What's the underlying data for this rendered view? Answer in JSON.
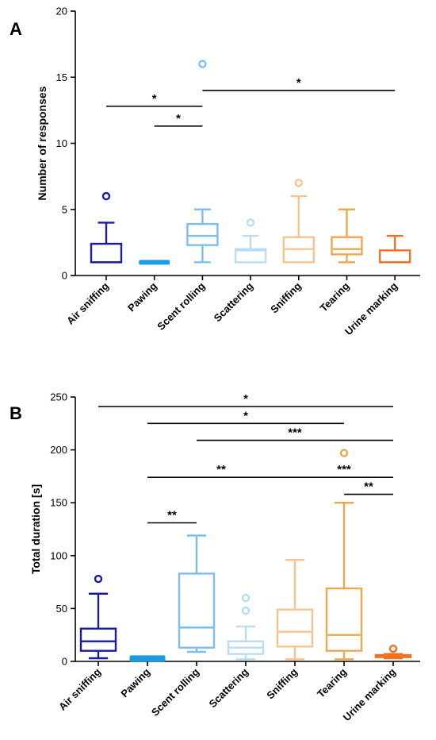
{
  "chart_data": [
    {
      "panel": "A",
      "type": "box",
      "ylabel": "Number of responses",
      "ylim": [
        0,
        20
      ],
      "yticks": [
        0,
        5,
        10,
        15,
        20
      ],
      "categories": [
        "Air sniffing",
        "Pawing",
        "Scent rolling",
        "Scattering",
        "Sniffing",
        "Tearing",
        "Urine marking"
      ],
      "colors": [
        "#1a1aa6",
        "#1a9be6",
        "#7cbfee",
        "#b9dcf5",
        "#f7c48c",
        "#f0a84e",
        "#ee7222"
      ],
      "boxes": [
        {
          "min": 1,
          "q1": 1,
          "median": 1,
          "q3": 2.4,
          "max": 4,
          "outliers": [
            6
          ]
        },
        {
          "min": 1,
          "q1": 1,
          "median": 1,
          "q3": 1,
          "max": 1,
          "outliers": []
        },
        {
          "min": 1,
          "q1": 2.3,
          "median": 3,
          "q3": 3.9,
          "max": 5,
          "outliers": [
            16
          ]
        },
        {
          "min": 1,
          "q1": 1,
          "median": 1.9,
          "q3": 2,
          "max": 3,
          "outliers": [
            4
          ]
        },
        {
          "min": 1,
          "q1": 1,
          "median": 2,
          "q3": 2.9,
          "max": 6,
          "outliers": [
            7
          ]
        },
        {
          "min": 1,
          "q1": 1.6,
          "median": 2,
          "q3": 2.9,
          "max": 5,
          "outliers": []
        },
        {
          "min": 1,
          "q1": 1,
          "median": 1,
          "q3": 1.9,
          "max": 3,
          "outliers": []
        }
      ],
      "significance": [
        {
          "from": 0,
          "to": 2,
          "y": 12.8,
          "label": "*"
        },
        {
          "from": 1,
          "to": 2,
          "y": 11.3,
          "label": "*"
        },
        {
          "from": 2,
          "to": 6,
          "y": 14.0,
          "label": "*"
        }
      ]
    },
    {
      "panel": "B",
      "type": "box",
      "ylabel": "Total duration [s]",
      "ylim": [
        0,
        250
      ],
      "yticks": [
        0,
        50,
        100,
        150,
        200,
        250
      ],
      "categories": [
        "Air sniffing",
        "Pawing",
        "Scent rolling",
        "Scattering",
        "Sniffing",
        "Tearing",
        "Urine marking"
      ],
      "colors": [
        "#1a1aa6",
        "#1a9be6",
        "#7cbfee",
        "#b9dcf5",
        "#f7c48c",
        "#f0a84e",
        "#ee7222"
      ],
      "boxes": [
        {
          "min": 3,
          "q1": 10,
          "median": 19,
          "q3": 31,
          "max": 64,
          "outliers": [
            78
          ]
        },
        {
          "min": 1,
          "q1": 2,
          "median": 3,
          "q3": 3.5,
          "max": 4,
          "outliers": []
        },
        {
          "min": 9,
          "q1": 13,
          "median": 32,
          "q3": 83,
          "max": 119,
          "outliers": []
        },
        {
          "min": 2,
          "q1": 7,
          "median": 13,
          "q3": 19,
          "max": 33,
          "outliers": [
            48,
            60
          ]
        },
        {
          "min": 2,
          "q1": 14,
          "median": 28,
          "q3": 49,
          "max": 96,
          "outliers": []
        },
        {
          "min": 2,
          "q1": 10,
          "median": 25,
          "q3": 69,
          "max": 150,
          "outliers": [
            197
          ]
        },
        {
          "min": 3,
          "q1": 4,
          "median": 5,
          "q3": 6,
          "max": 7,
          "outliers": [
            12
          ]
        }
      ],
      "significance": [
        {
          "from": 0,
          "to": 6,
          "y": 241,
          "label": "*"
        },
        {
          "from": 1,
          "to": 5,
          "y": 225,
          "label": "*"
        },
        {
          "from": 2,
          "to": 6,
          "y": 209,
          "label": "***"
        },
        {
          "from": 1,
          "to": 4,
          "y": 174,
          "label": "**"
        },
        {
          "from": 4,
          "to": 6,
          "y": 174,
          "label": "***"
        },
        {
          "from": 5,
          "to": 6,
          "y": 158,
          "label": "**"
        },
        {
          "from": 1,
          "to": 2,
          "y": 131,
          "label": "**"
        }
      ]
    }
  ]
}
